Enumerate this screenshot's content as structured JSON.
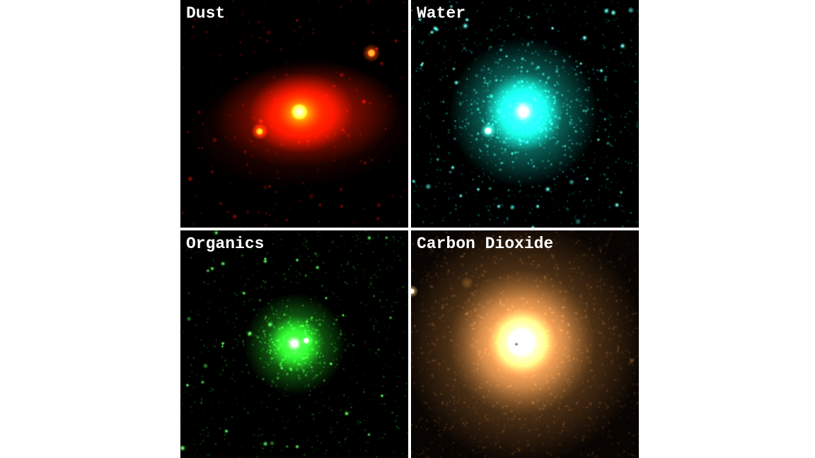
{
  "montage": {
    "background": "#ffffff",
    "divider_color": "#ffffff",
    "label_color": "#ffffff",
    "panels": [
      {
        "id": "dust",
        "label": "Dust",
        "colors": {
          "background": "#000000",
          "speckle": "#b51200",
          "base": "#cc1400",
          "mid": "#ff4a00",
          "bright": "#ffc832",
          "core": "#ffffc8"
        }
      },
      {
        "id": "water",
        "label": "Water",
        "colors": {
          "background": "#000000",
          "speckle": "#12c2b0",
          "base": "#15d8c4",
          "mid": "#4df0dc",
          "bright": "#9dfff0",
          "core": "#ffffff"
        }
      },
      {
        "id": "organics",
        "label": "Organics",
        "colors": {
          "background": "#000000",
          "speckle": "#1fa81f",
          "base": "#22b822",
          "mid": "#46e046",
          "bright": "#8cff8c",
          "core": "#f0fff0"
        }
      },
      {
        "id": "co2",
        "label": "Carbon Dioxide",
        "colors": {
          "background": "#0a0502",
          "speckle": "#9a6430",
          "base": "#8a5a28",
          "mid": "#c8854a",
          "bright": "#e8a964",
          "core": "#ffffff"
        }
      }
    ]
  }
}
